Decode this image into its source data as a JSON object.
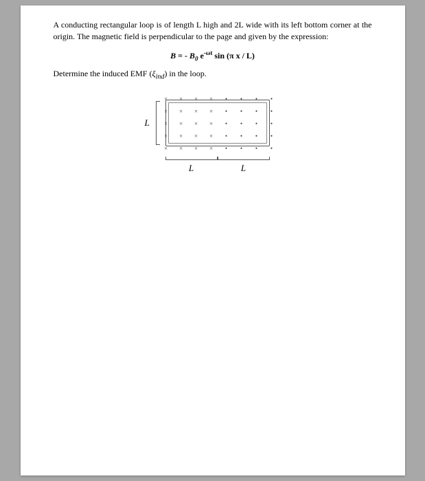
{
  "problem": {
    "intro": "A conducting rectangular loop is of length L high and 2L wide with its left bottom corner at the origin.  The magnetic field is perpendicular to the page and given by the expression:",
    "formula_B": "B",
    "formula_eq": " = - ",
    "formula_B0": "B",
    "formula_sub0": "0",
    "formula_e": " e",
    "formula_exp": "-ωt",
    "formula_sin": " sin (π x / L)",
    "question_prefix": "Determine the induced EMF (",
    "question_var": "ξ",
    "question_sub": "ind",
    "question_suffix": ") in the loop."
  },
  "diagram": {
    "L_label": "L",
    "field_into": "×",
    "field_out": "•",
    "rows": 5,
    "cols": 8,
    "split_col": 4,
    "colors": {
      "page_bg": "#ffffff",
      "body_bg": "#a8a8a8",
      "loop_border": "#555555",
      "symbol": "#444444"
    }
  },
  "faint": {
    "l1": "",
    "l2": "",
    "l3": "",
    "l4": "",
    "l5": "",
    "l6": ""
  }
}
